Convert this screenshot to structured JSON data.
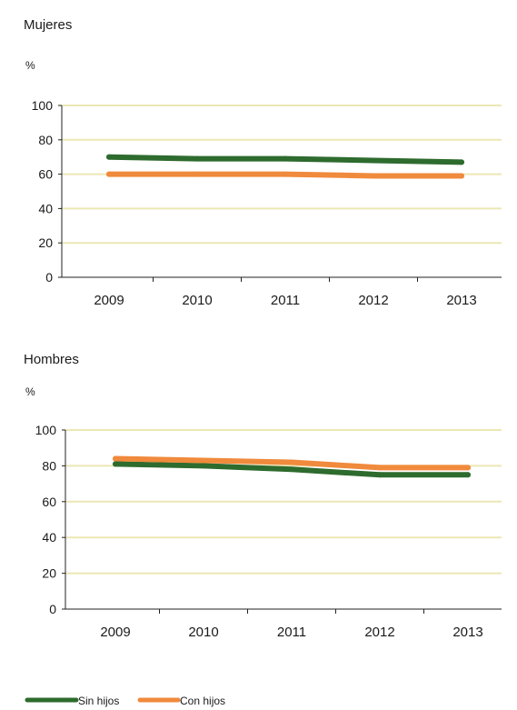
{
  "chart_data": [
    {
      "type": "line",
      "title": "Mujeres",
      "ylabel": "%",
      "x": [
        "2009",
        "2010",
        "2011",
        "2012",
        "2013"
      ],
      "ylim": [
        0,
        100
      ],
      "yticks": [
        "0",
        "20",
        "40",
        "60",
        "80",
        "100"
      ],
      "grid": true,
      "series": [
        {
          "name": "Sin hijos",
          "color": "#2e6b2e",
          "values": [
            70,
            69,
            69,
            68,
            67
          ]
        },
        {
          "name": "Con hijos",
          "color": "#f08a3c",
          "values": [
            60,
            60,
            60,
            59,
            59
          ]
        }
      ]
    },
    {
      "type": "line",
      "title": "Hombres",
      "ylabel": "%",
      "x": [
        "2009",
        "2010",
        "2011",
        "2012",
        "2013"
      ],
      "ylim": [
        0,
        100
      ],
      "yticks": [
        "0",
        "20",
        "40",
        "60",
        "80",
        "100"
      ],
      "grid": true,
      "series": [
        {
          "name": "Sin hijos",
          "color": "#2e6b2e",
          "values": [
            81,
            80,
            78,
            75,
            75
          ]
        },
        {
          "name": "Con hijos",
          "color": "#f08a3c",
          "values": [
            84,
            83,
            82,
            79,
            79
          ]
        }
      ]
    }
  ],
  "legend": {
    "placement": "bottom-left",
    "items": [
      {
        "label": "Sin hijos",
        "color": "#2e6b2e"
      },
      {
        "label": "Con hijos",
        "color": "#f08a3c"
      }
    ]
  },
  "colors": {
    "grid": "#ece7b4",
    "axis": "#222222"
  }
}
